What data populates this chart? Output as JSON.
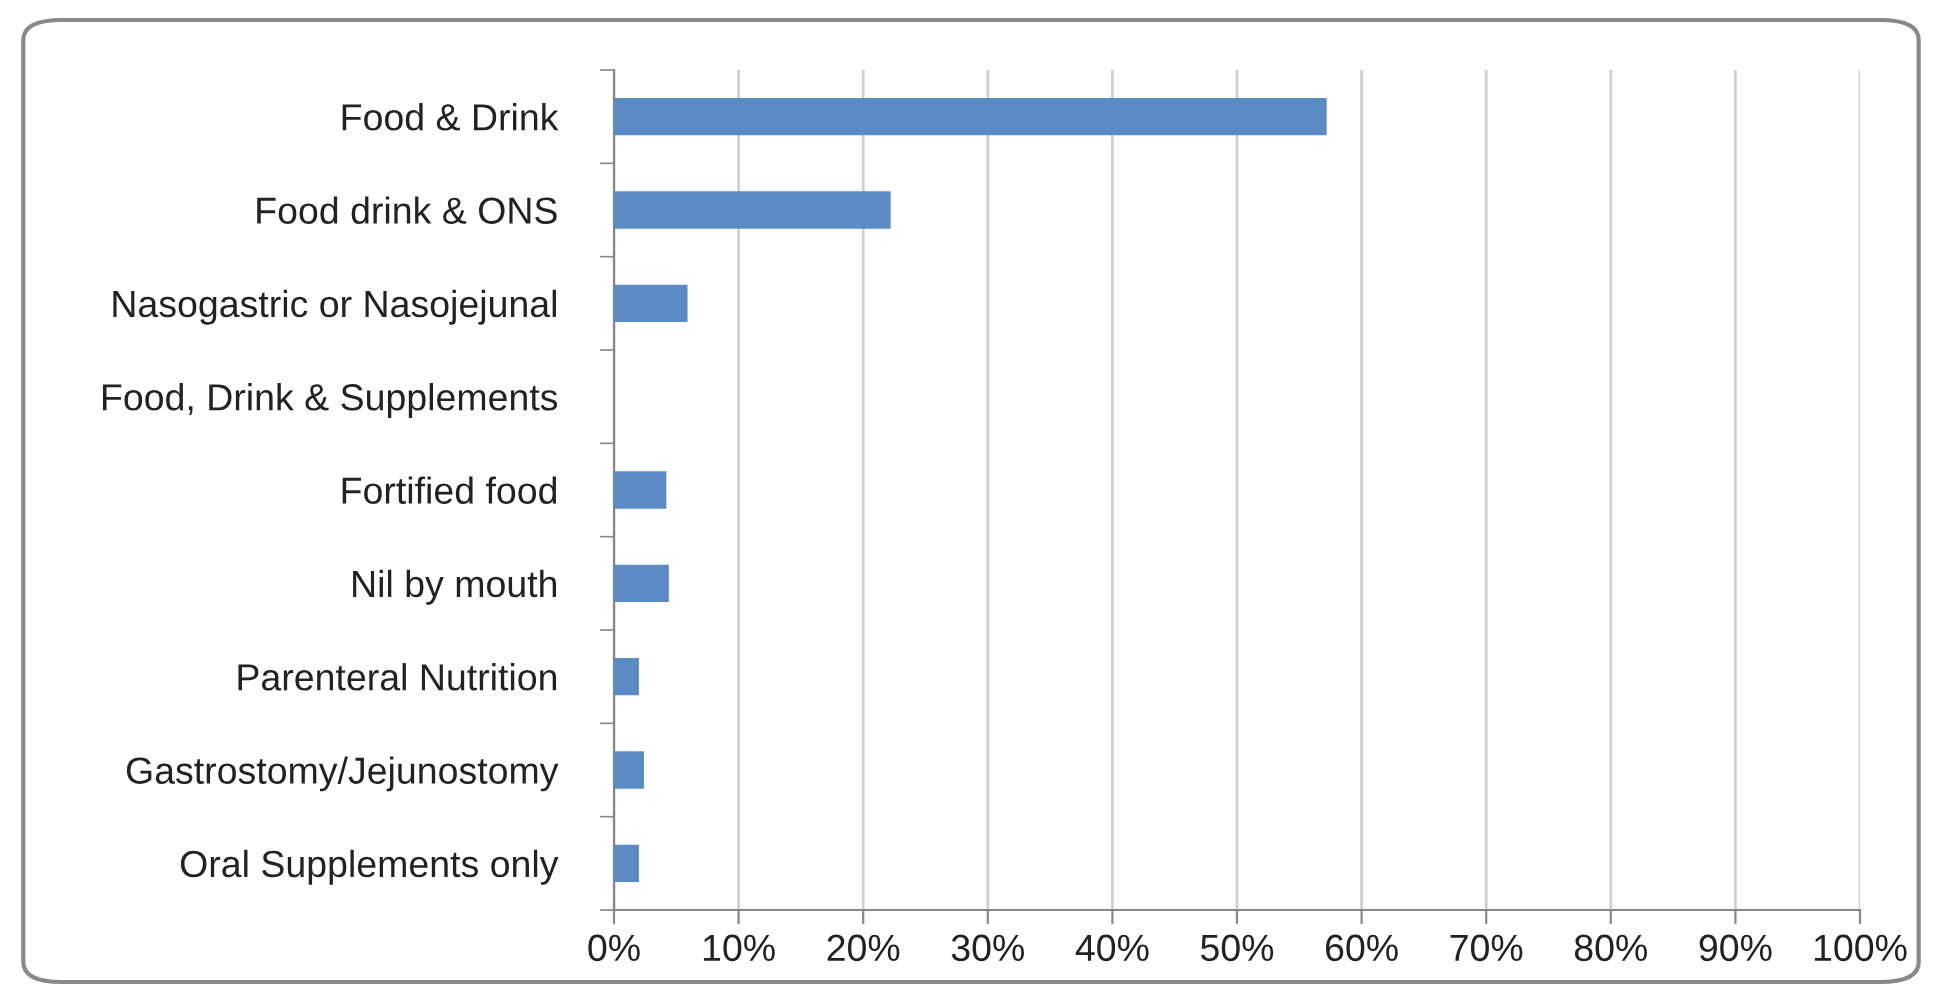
{
  "chart_data": {
    "type": "bar",
    "orientation": "horizontal",
    "categories": [
      "Food & Drink",
      "Food drink & ONS",
      "Nasogastric or Nasojejunal",
      "Food, Drink & Supplements",
      "Fortified food",
      "Nil by mouth",
      "Parenteral Nutrition",
      "Gastrostomy/Jejunostomy",
      "Oral Supplements only"
    ],
    "values": [
      57.2,
      22.2,
      5.9,
      0,
      4.2,
      4.4,
      2.0,
      2.4,
      2.0
    ],
    "color": "#5b8bc5",
    "xlim": [
      0,
      100
    ],
    "xticks": [
      {
        "value": 0,
        "label": "0%"
      },
      {
        "value": 10,
        "label": "10%"
      },
      {
        "value": 20,
        "label": "20%"
      },
      {
        "value": 30,
        "label": "30%"
      },
      {
        "value": 40,
        "label": "40%"
      },
      {
        "value": 50,
        "label": "50%"
      },
      {
        "value": 60,
        "label": "60%"
      },
      {
        "value": 70,
        "label": "70%"
      },
      {
        "value": 80,
        "label": "80%"
      },
      {
        "value": 90,
        "label": "90%"
      },
      {
        "value": 100,
        "label": "100%"
      }
    ],
    "grid": "x",
    "legend": false
  }
}
